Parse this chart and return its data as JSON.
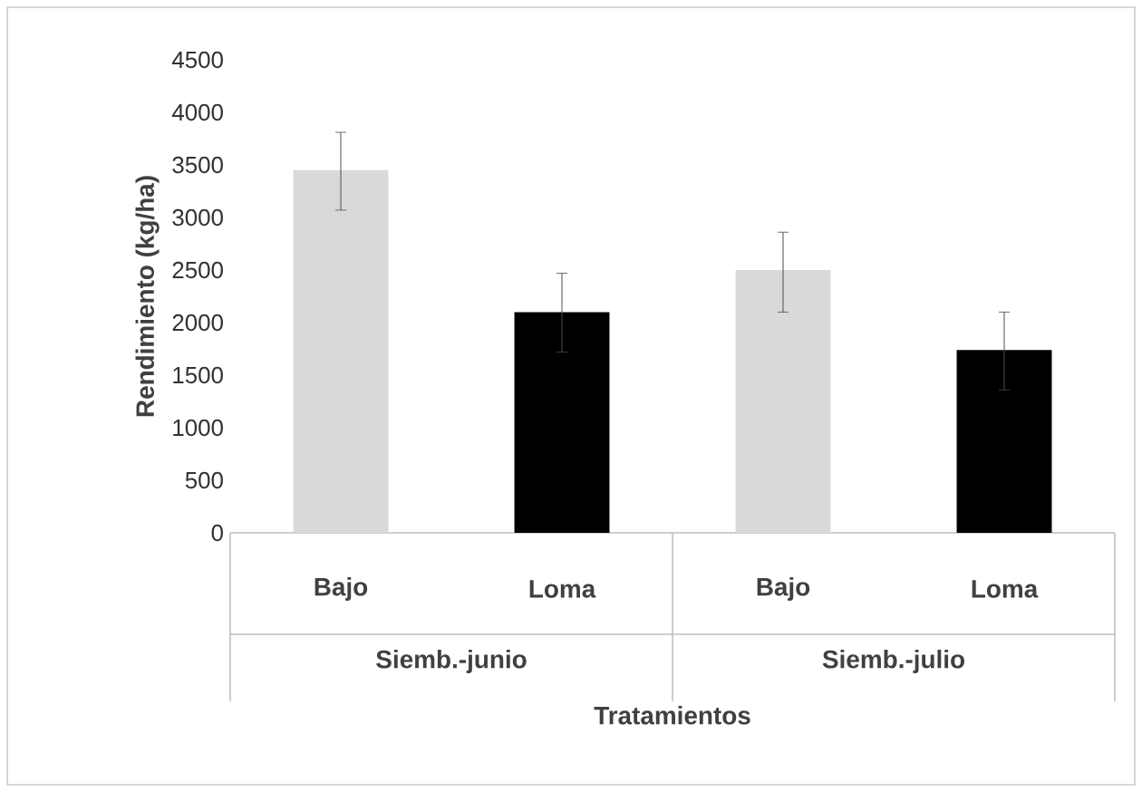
{
  "chart_data": {
    "type": "bar",
    "ylabel": "Rendimiento (kg/ha)",
    "xlabel": "Tratamientos",
    "categories": [
      "Bajo",
      "Loma",
      "Bajo",
      "Loma"
    ],
    "values": [
      3450,
      2100,
      2500,
      1740
    ],
    "colors": [
      "#d9d9d9",
      "#000000",
      "#d9d9d9",
      "#000000"
    ],
    "errors": [
      [
        3070,
        3810
      ],
      [
        1720,
        2470
      ],
      [
        2100,
        2860
      ],
      [
        1360,
        2100
      ]
    ],
    "ylim": [
      0,
      4500
    ],
    "yticks": [
      0,
      500,
      1000,
      1500,
      2000,
      2500,
      3000,
      3500,
      4000,
      4500
    ],
    "annotations": [
      "Siemb.-junio",
      "Siemb.-julio"
    ],
    "grid": false
  }
}
